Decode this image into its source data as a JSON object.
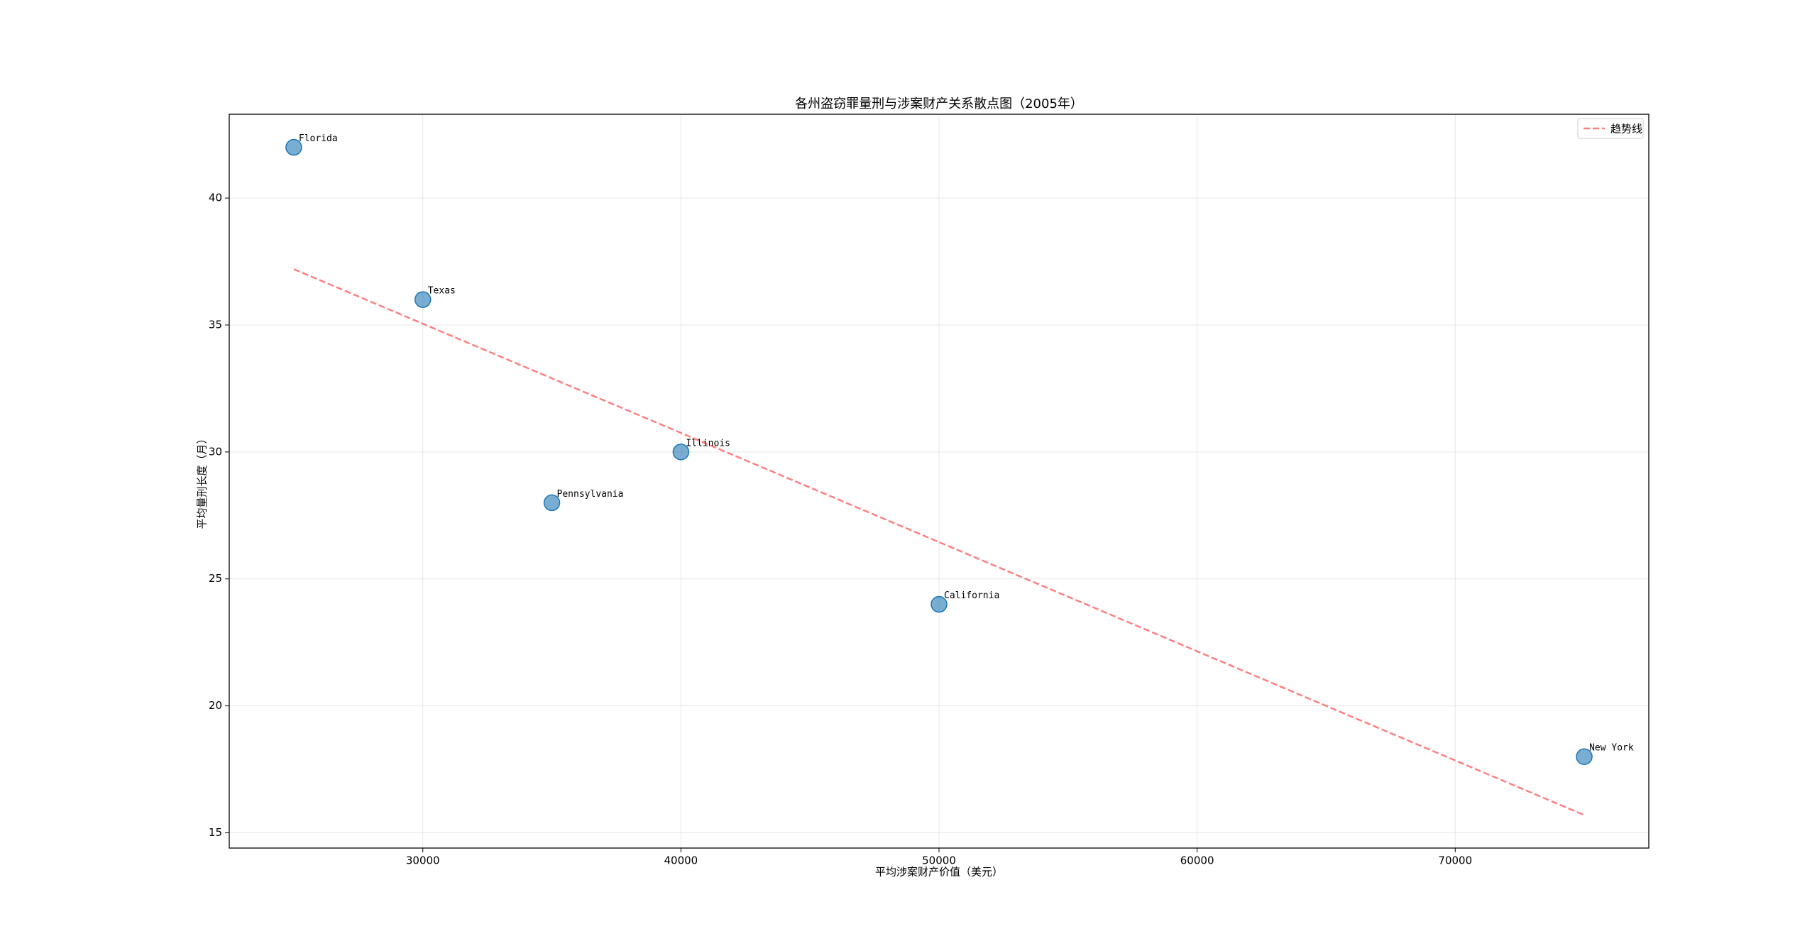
{
  "chart_data": {
    "type": "scatter",
    "title": "各州盗窃罪量刑与涉案财产关系散点图（2005年）",
    "x_label": "平均涉案财产价值（美元）",
    "y_label": "平均量刑长度（月）",
    "x": [
      25000,
      30000,
      35000,
      40000,
      50000,
      75000
    ],
    "values": [
      42,
      36,
      28,
      30,
      24,
      18
    ],
    "point_labels": [
      "Florida",
      "Texas",
      "Pennsylvania",
      "Illinois",
      "California",
      "New York"
    ],
    "color": "#1f77b4",
    "trend": {
      "name": "趋势线",
      "x": [
        25000,
        75000
      ],
      "values": [
        37.2,
        15.7
      ],
      "color": "#ff0000"
    },
    "xlim": [
      22500,
      77500
    ],
    "ylim": [
      14.4,
      43.3
    ],
    "xticks": [
      30000,
      40000,
      50000,
      60000,
      70000
    ],
    "yticks": [
      15,
      20,
      25,
      30,
      35,
      40
    ],
    "grid": true,
    "legend": "upper right"
  }
}
